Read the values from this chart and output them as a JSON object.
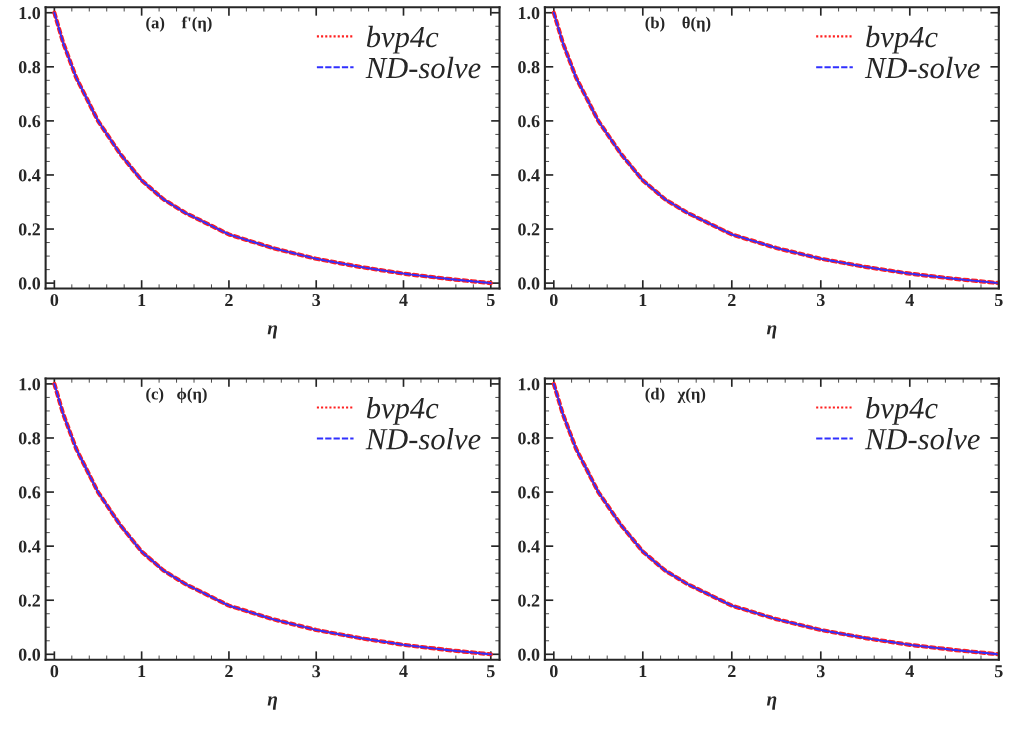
{
  "chart_data": [
    {
      "type": "line",
      "xlabel": "η",
      "annotations": [
        "(a)    f'(η)"
      ],
      "x": [
        0,
        0.1,
        0.25,
        0.5,
        0.75,
        1,
        1.25,
        1.5,
        2,
        2.5,
        3,
        3.5,
        4,
        4.5,
        5
      ],
      "xlim": [
        -0.1,
        5.1
      ],
      "ylim": [
        -0.02,
        1.02
      ],
      "xticks": [
        0,
        1,
        2,
        3,
        4,
        5
      ],
      "yticks": [
        {
          "value": 0,
          "label": "0.0"
        },
        {
          "value": 0.2,
          "label": "0.2"
        },
        {
          "value": 0.4,
          "label": "0.4"
        },
        {
          "value": 0.6,
          "label": "0.6"
        },
        {
          "value": 0.8,
          "label": "0.8"
        },
        {
          "value": 1,
          "label": "1.0"
        }
      ],
      "legend": "top right",
      "grid": false,
      "marker": "none",
      "series": [
        {
          "name": "bvp4c",
          "color": "#ff2020",
          "line_style": "dotted",
          "values": [
            1.0,
            0.89,
            0.76,
            0.6,
            0.48,
            0.38,
            0.31,
            0.26,
            0.18,
            0.13,
            0.09,
            0.06,
            0.035,
            0.016,
            0.0
          ]
        },
        {
          "name": "ND-solve",
          "color": "#3030ff",
          "line_style": "dashed",
          "values": [
            1.0,
            0.89,
            0.76,
            0.6,
            0.48,
            0.38,
            0.31,
            0.26,
            0.18,
            0.13,
            0.09,
            0.06,
            0.035,
            0.016,
            0.0
          ]
        }
      ]
    },
    {
      "type": "line",
      "xlabel": "η",
      "annotations": [
        "(b)    θ(η)"
      ],
      "x": [
        0,
        0.1,
        0.25,
        0.5,
        0.75,
        1,
        1.25,
        1.5,
        2,
        2.5,
        3,
        3.5,
        4,
        4.5,
        5
      ],
      "xlim": [
        -0.1,
        5.0
      ],
      "ylim": [
        -0.02,
        1.02
      ],
      "xticks": [
        0,
        1,
        2,
        3,
        4,
        5
      ],
      "yticks": [
        {
          "value": 0,
          "label": "0.0"
        },
        {
          "value": 0.2,
          "label": "0.2"
        },
        {
          "value": 0.4,
          "label": "0.4"
        },
        {
          "value": 0.6,
          "label": "0.6"
        },
        {
          "value": 0.8,
          "label": "0.8"
        },
        {
          "value": 1,
          "label": "1.0"
        }
      ],
      "legend": "top right",
      "grid": false,
      "marker": "none",
      "series": [
        {
          "name": "bvp4c",
          "color": "#ff2020",
          "line_style": "dotted",
          "values": [
            1.0,
            0.89,
            0.76,
            0.6,
            0.48,
            0.38,
            0.31,
            0.26,
            0.18,
            0.13,
            0.09,
            0.06,
            0.035,
            0.016,
            0.0
          ]
        },
        {
          "name": "ND-solve",
          "color": "#3030ff",
          "line_style": "dashed",
          "values": [
            1.0,
            0.89,
            0.76,
            0.6,
            0.48,
            0.38,
            0.31,
            0.26,
            0.18,
            0.13,
            0.09,
            0.06,
            0.035,
            0.016,
            0.0
          ]
        }
      ]
    },
    {
      "type": "line",
      "xlabel": "η",
      "annotations": [
        "(c)   ϕ(η)"
      ],
      "x": [
        0,
        0.1,
        0.25,
        0.5,
        0.75,
        1,
        1.25,
        1.5,
        2,
        2.5,
        3,
        3.5,
        4,
        4.5,
        5
      ],
      "xlim": [
        -0.1,
        5.1
      ],
      "ylim": [
        -0.02,
        1.02
      ],
      "xticks": [
        0,
        1,
        2,
        3,
        4,
        5
      ],
      "yticks": [
        {
          "value": 0,
          "label": "0.0"
        },
        {
          "value": 0.2,
          "label": "0.2"
        },
        {
          "value": 0.4,
          "label": "0.4"
        },
        {
          "value": 0.6,
          "label": "0.6"
        },
        {
          "value": 0.8,
          "label": "0.8"
        },
        {
          "value": 1,
          "label": "1.0"
        }
      ],
      "legend": "top right",
      "grid": false,
      "marker": "none",
      "series": [
        {
          "name": "bvp4c",
          "color": "#ff2020",
          "line_style": "dotted",
          "values": [
            1.0,
            0.89,
            0.76,
            0.6,
            0.48,
            0.38,
            0.31,
            0.26,
            0.18,
            0.13,
            0.09,
            0.06,
            0.035,
            0.016,
            0.0
          ]
        },
        {
          "name": "ND-solve",
          "color": "#3030ff",
          "line_style": "dashed",
          "values": [
            1.0,
            0.89,
            0.76,
            0.6,
            0.48,
            0.38,
            0.31,
            0.26,
            0.18,
            0.13,
            0.09,
            0.06,
            0.035,
            0.016,
            0.0
          ]
        }
      ]
    },
    {
      "type": "line",
      "xlabel": "η",
      "annotations": [
        "(d)   χ(η)"
      ],
      "x": [
        0,
        0.1,
        0.25,
        0.5,
        0.75,
        1,
        1.25,
        1.5,
        2,
        2.5,
        3,
        3.5,
        4,
        4.5,
        5
      ],
      "xlim": [
        -0.1,
        5.0
      ],
      "ylim": [
        -0.02,
        1.02
      ],
      "xticks": [
        0,
        1,
        2,
        3,
        4,
        5
      ],
      "yticks": [
        {
          "value": 0,
          "label": "0.0"
        },
        {
          "value": 0.2,
          "label": "0.2"
        },
        {
          "value": 0.4,
          "label": "0.4"
        },
        {
          "value": 0.6,
          "label": "0.6"
        },
        {
          "value": 0.8,
          "label": "0.8"
        },
        {
          "value": 1,
          "label": "1.0"
        }
      ],
      "legend": "top right",
      "grid": false,
      "marker": "none",
      "series": [
        {
          "name": "bvp4c",
          "color": "#ff2020",
          "line_style": "dotted",
          "values": [
            1.0,
            0.89,
            0.76,
            0.6,
            0.48,
            0.38,
            0.31,
            0.26,
            0.18,
            0.13,
            0.09,
            0.06,
            0.035,
            0.016,
            0.0
          ]
        },
        {
          "name": "ND-solve",
          "color": "#3030ff",
          "line_style": "dashed",
          "values": [
            1.0,
            0.89,
            0.76,
            0.6,
            0.48,
            0.38,
            0.31,
            0.26,
            0.18,
            0.13,
            0.09,
            0.06,
            0.035,
            0.016,
            0.0
          ]
        }
      ]
    }
  ]
}
